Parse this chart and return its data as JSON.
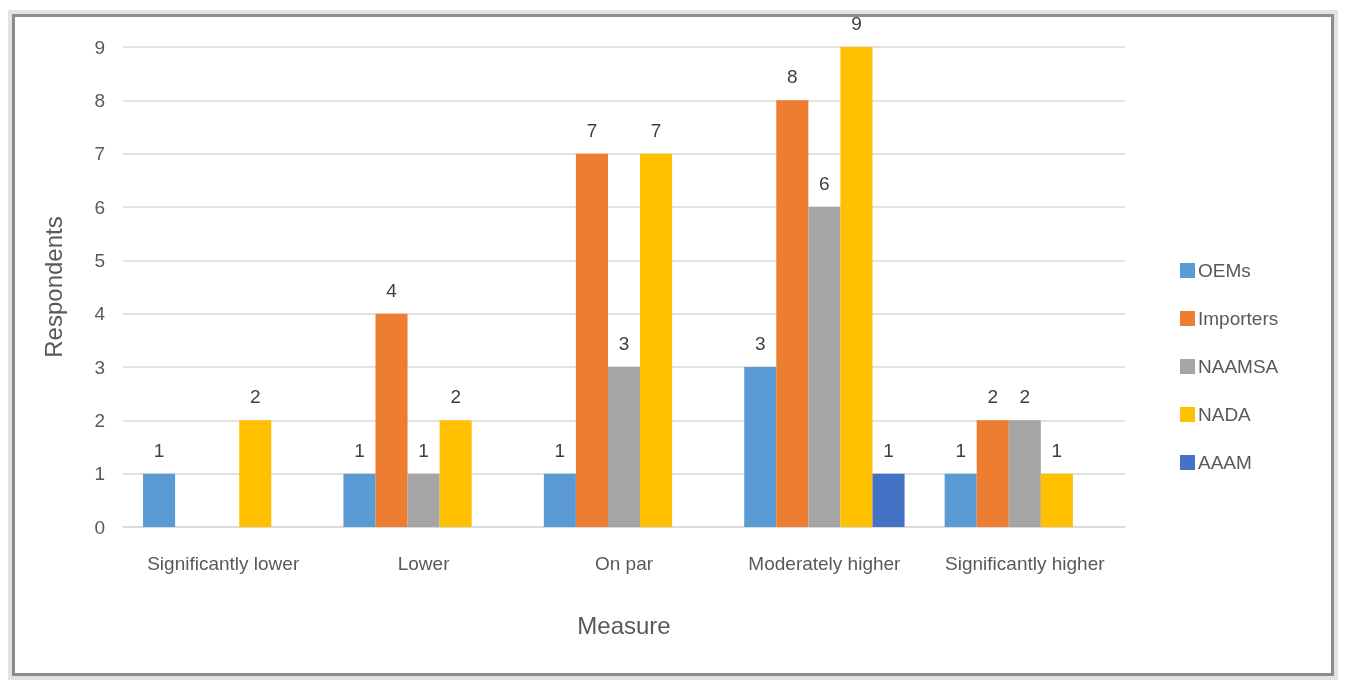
{
  "chart_data": {
    "type": "bar",
    "xlabel": "Measure",
    "ylabel": "Respondents",
    "categories": [
      "Significantly lower",
      "Lower",
      "On par",
      "Moderately higher",
      "Significantly higher"
    ],
    "series": [
      {
        "name": "OEMs",
        "color": "#5b9bd5",
        "values": [
          1,
          1,
          1,
          3,
          1
        ]
      },
      {
        "name": "Importers",
        "color": "#ed7d31",
        "values": [
          null,
          4,
          7,
          8,
          2
        ]
      },
      {
        "name": "NAAMSA",
        "color": "#a5a5a5",
        "values": [
          null,
          1,
          3,
          6,
          2
        ]
      },
      {
        "name": "NADA",
        "color": "#ffc000",
        "values": [
          2,
          2,
          7,
          9,
          1
        ]
      },
      {
        "name": "AAAM",
        "color": "#4472c4",
        "values": [
          null,
          null,
          null,
          1,
          null
        ]
      }
    ],
    "ylim": [
      0,
      9
    ],
    "yticks": [
      0,
      1,
      2,
      3,
      4,
      5,
      6,
      7,
      8,
      9
    ],
    "grid": "y",
    "legend": "right",
    "data_labels": true
  }
}
